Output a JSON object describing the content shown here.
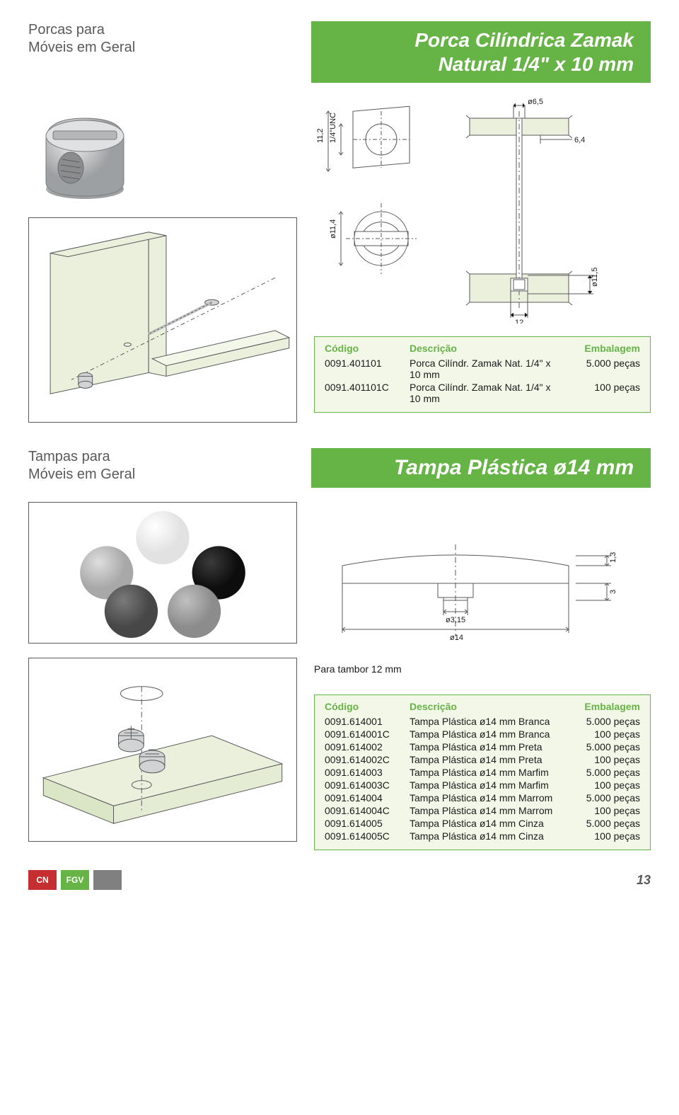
{
  "colors": {
    "accent": "#67b446",
    "table_bg": "#f2f7e8",
    "text_gray": "#595a5c",
    "text_dark": "#1b1b1b",
    "line": "#595a5c",
    "panel_fill": "#eaf0db",
    "metal": "#d1d3d4"
  },
  "section1": {
    "label_line1": "Porcas para",
    "label_line2": "Móveis em Geral",
    "title_line1": "Porca Cilíndrica Zamak",
    "title_line2": "Natural 1/4\" x 10 mm",
    "dims": {
      "d6_5": "ø6,5",
      "v11_2": "11,2",
      "unc": "1/4\"UNC",
      "v6_4": "6,4",
      "d11_5": "ø11,5",
      "d11_4": "ø11,4",
      "w12": "12"
    },
    "headers": {
      "code": "Código",
      "desc": "Descrição",
      "pack": "Embalagem"
    },
    "rows": [
      {
        "code": "0091.401101",
        "desc": "Porca Cilíndr. Zamak Nat. 1/4\" x 10 mm",
        "pack": "5.000 peças"
      },
      {
        "code": "0091.401101C",
        "desc": "Porca Cilíndr. Zamak Nat. 1/4\" x 10 mm",
        "pack": "100 peças"
      }
    ]
  },
  "section2": {
    "label_line1": "Tampas para",
    "label_line2": "Móveis em Geral",
    "title": "Tampa Plástica ø14 mm",
    "cap_colors": {
      "white": "#f2f2f2",
      "light_gray": "#bfbfbf",
      "dark_gray": "#595a5c",
      "black": "#1b1b1b",
      "mid_gray": "#9e9e9e"
    },
    "dims": {
      "h1_3": "1,3",
      "h3": "3",
      "d3_15": "ø3,15",
      "d14": "ø14"
    },
    "footnote": "Para tambor 12 mm",
    "headers": {
      "code": "Código",
      "desc": "Descrição",
      "pack": "Embalagem"
    },
    "rows": [
      {
        "code": "0091.614001",
        "desc": "Tampa Plástica ø14 mm Branca",
        "pack": "5.000 peças"
      },
      {
        "code": "0091.614001C",
        "desc": "Tampa Plástica ø14 mm Branca",
        "pack": "100 peças"
      },
      {
        "code": "0091.614002",
        "desc": "Tampa Plástica ø14 mm Preta",
        "pack": "5.000 peças"
      },
      {
        "code": "0091.614002C",
        "desc": "Tampa Plástica ø14 mm Preta",
        "pack": "100 peças"
      },
      {
        "code": "0091.614003",
        "desc": "Tampa Plástica ø14 mm Marfim",
        "pack": "5.000 peças"
      },
      {
        "code": "0091.614003C",
        "desc": "Tampa Plástica ø14 mm Marfim",
        "pack": "100 peças"
      },
      {
        "code": "0091.614004",
        "desc": "Tampa Plástica ø14 mm Marrom",
        "pack": "5.000 peças"
      },
      {
        "code": "0091.614004C",
        "desc": "Tampa Plástica ø14 mm Marrom",
        "pack": "100 peças"
      },
      {
        "code": "0091.614005",
        "desc": "Tampa Plástica ø14 mm Cinza",
        "pack": "5.000 peças"
      },
      {
        "code": "0091.614005C",
        "desc": "Tampa Plástica ø14 mm Cinza",
        "pack": "100 peças"
      }
    ]
  },
  "footer": {
    "logo1": "CN",
    "logo1_bg": "#c62f2f",
    "logo2": "FGV",
    "logo2_bg": "#67b446",
    "logo3": "",
    "logo3_bg": "#808080",
    "page": "13"
  }
}
